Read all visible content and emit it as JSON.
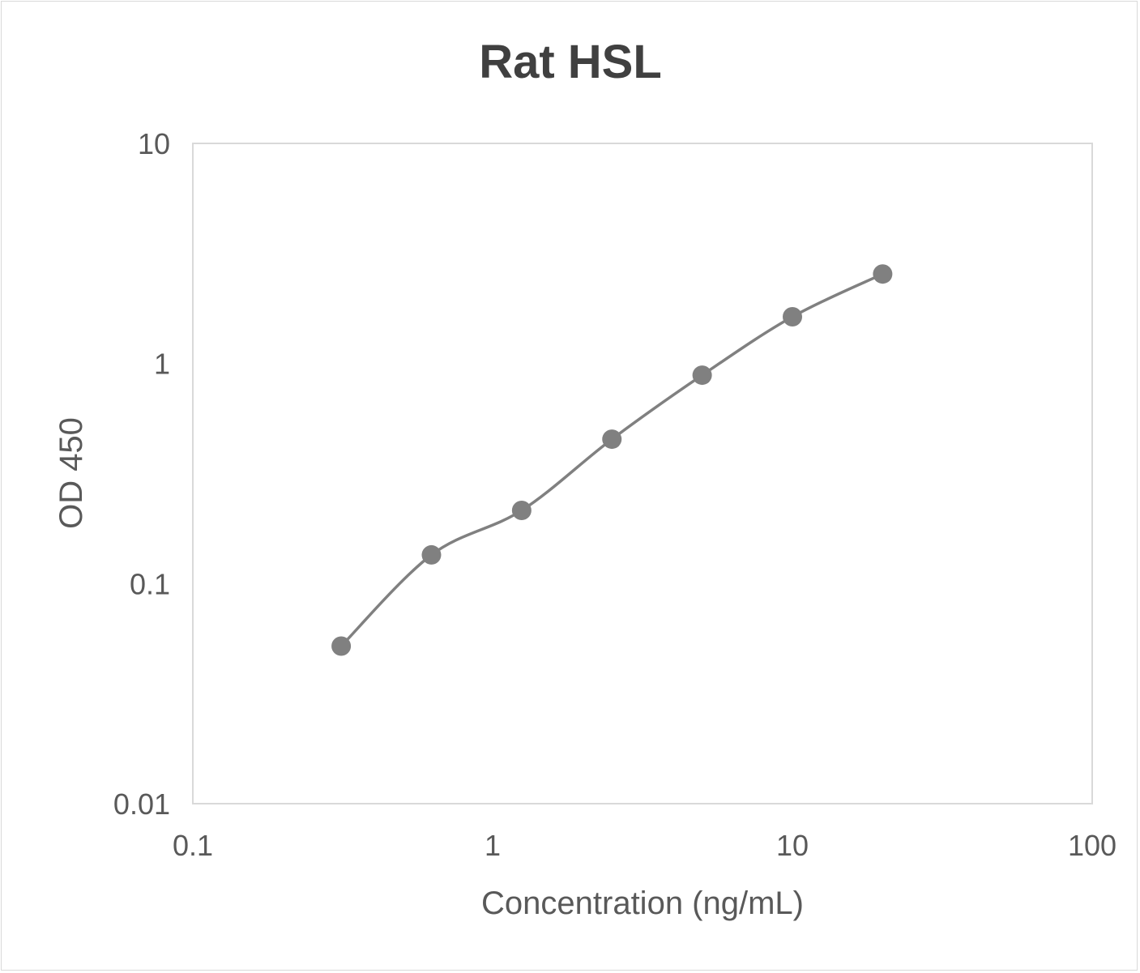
{
  "chart_data": {
    "type": "line",
    "title": "Rat HSL",
    "xlabel": "Concentration (ng/mL)",
    "ylabel": "OD 450",
    "xscale": "log",
    "yscale": "log",
    "xlim": [
      0.1,
      100
    ],
    "ylim": [
      0.01,
      10
    ],
    "xticks": [
      "0.1",
      "1",
      "10",
      "100"
    ],
    "yticks": [
      "0.01",
      "0.1",
      "1",
      "10"
    ],
    "grid": false,
    "legend": "none",
    "smooth": true,
    "markers": true,
    "series_color": "#808080",
    "x": [
      0.3125,
      0.625,
      1.25,
      2.5,
      5,
      10,
      20
    ],
    "y": [
      0.052,
      0.135,
      0.215,
      0.453,
      0.885,
      1.63,
      2.55
    ]
  }
}
